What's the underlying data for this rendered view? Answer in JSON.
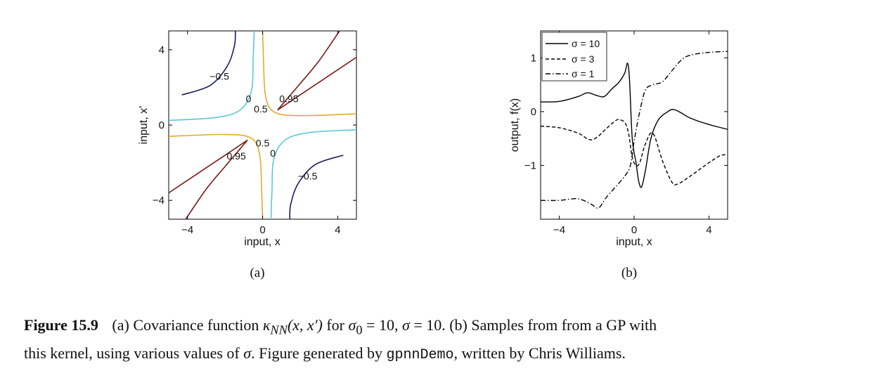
{
  "chart_data": [
    {
      "type": "contour",
      "panel_label": "(a)",
      "xlabel": "input, x",
      "ylabel": "input, x'",
      "xlim": [
        -5,
        5
      ],
      "ylim": [
        -5,
        5
      ],
      "xticks": [
        -4,
        0,
        4
      ],
      "yticks": [
        -4,
        0,
        4
      ],
      "xtick_labels": [
        "−4",
        "0",
        "4"
      ],
      "ytick_labels": [
        "−4",
        "0",
        "4"
      ],
      "levels": [
        {
          "value": -0.5,
          "label": "−0.5",
          "color": "#1a1f5e"
        },
        {
          "value": 0,
          "label": "0",
          "color": "#5cc9d2"
        },
        {
          "value": 0.5,
          "label": "0.5",
          "color": "#e5a92a"
        },
        {
          "value": 0.95,
          "label": "0.95",
          "color": "#7a1a1a"
        }
      ],
      "contours": [
        {
          "level": -0.5,
          "points": [
            [
              -4.3,
              1.6
            ],
            [
              -2.8,
              2.1
            ],
            [
              -1.9,
              3.1
            ],
            [
              -1.5,
              4.2
            ],
            [
              -1.45,
              5.0
            ]
          ]
        },
        {
          "level": -0.5,
          "points": [
            [
              4.3,
              -1.6
            ],
            [
              2.8,
              -2.1
            ],
            [
              1.9,
              -3.1
            ],
            [
              1.5,
              -4.2
            ],
            [
              1.45,
              -5.0
            ]
          ]
        },
        {
          "level": 0,
          "points": [
            [
              -5.0,
              0.25
            ],
            [
              -2.5,
              0.4
            ],
            [
              -1.2,
              0.8
            ],
            [
              -0.6,
              1.8
            ],
            [
              -0.5,
              3.5
            ],
            [
              -0.45,
              5.0
            ]
          ]
        },
        {
          "level": 0,
          "points": [
            [
              5.0,
              -0.25
            ],
            [
              2.5,
              -0.4
            ],
            [
              1.2,
              -0.8
            ],
            [
              0.6,
              -1.8
            ],
            [
              0.5,
              -3.5
            ],
            [
              0.45,
              -5.0
            ]
          ]
        },
        {
          "level": 0.5,
          "points": [
            [
              -5.0,
              -0.6
            ],
            [
              -2.0,
              -0.5
            ],
            [
              -0.6,
              -0.7
            ],
            [
              -0.15,
              -1.6
            ],
            [
              -0.05,
              -3.5
            ],
            [
              0.0,
              -5.0
            ]
          ]
        },
        {
          "level": 0.5,
          "points": [
            [
              5.0,
              0.6
            ],
            [
              2.0,
              0.5
            ],
            [
              0.6,
              0.7
            ],
            [
              0.15,
              1.6
            ],
            [
              0.05,
              3.5
            ],
            [
              0.0,
              5.0
            ]
          ]
        },
        {
          "level": 0.95,
          "points": [
            [
              0.8,
              0.8
            ],
            [
              2.0,
              1.6
            ],
            [
              3.5,
              2.6
            ],
            [
              5.0,
              3.6
            ]
          ]
        },
        {
          "level": 0.95,
          "points": [
            [
              0.8,
              0.8
            ],
            [
              2.0,
              2.2
            ],
            [
              3.0,
              3.4
            ],
            [
              4.1,
              5.0
            ]
          ]
        },
        {
          "level": 0.95,
          "points": [
            [
              -0.8,
              -0.8
            ],
            [
              -2.0,
              -1.6
            ],
            [
              -3.5,
              -2.6
            ],
            [
              -5.0,
              -3.6
            ]
          ]
        },
        {
          "level": 0.95,
          "points": [
            [
              -0.8,
              -0.8
            ],
            [
              -2.0,
              -2.2
            ],
            [
              -3.0,
              -3.4
            ],
            [
              -4.1,
              -5.0
            ]
          ]
        }
      ],
      "contour_labels": [
        {
          "text": "−0.5",
          "x": -2.3,
          "y": 2.6
        },
        {
          "text": "0",
          "x": -0.75,
          "y": 1.4
        },
        {
          "text": "0.5",
          "x": -0.1,
          "y": 0.85
        },
        {
          "text": "0.95",
          "x": 1.4,
          "y": 1.4
        },
        {
          "text": "0.5",
          "x": 0.0,
          "y": -0.95
        },
        {
          "text": "0",
          "x": 0.55,
          "y": -1.5
        },
        {
          "text": "0.95",
          "x": -1.4,
          "y": -1.65
        },
        {
          "text": "−0.5",
          "x": 2.4,
          "y": -2.7
        }
      ]
    },
    {
      "type": "line",
      "panel_label": "(b)",
      "xlabel": "input, x",
      "ylabel": "output, f(x)",
      "xlim": [
        -5,
        5
      ],
      "ylim": [
        -2.0,
        1.5
      ],
      "xticks": [
        -4,
        0,
        4
      ],
      "yticks": [
        -1,
        0,
        1
      ],
      "xtick_labels": [
        "−4",
        "0",
        "4"
      ],
      "ytick_labels": [
        "−1",
        "0",
        "1"
      ],
      "legend": {
        "position": "top-left"
      },
      "series": [
        {
          "name": "σ = 10",
          "style": "solid",
          "points": [
            [
              -5,
              0.18
            ],
            [
              -4,
              0.19
            ],
            [
              -3,
              0.28
            ],
            [
              -2.5,
              0.35
            ],
            [
              -2,
              0.3
            ],
            [
              -1.6,
              0.28
            ],
            [
              -1.2,
              0.42
            ],
            [
              -0.8,
              0.55
            ],
            [
              -0.5,
              0.72
            ],
            [
              -0.35,
              0.9
            ],
            [
              -0.25,
              0.6
            ],
            [
              -0.1,
              -0.5
            ],
            [
              0.1,
              -0.95
            ],
            [
              0.25,
              -1.3
            ],
            [
              0.4,
              -1.4
            ],
            [
              0.6,
              -1.1
            ],
            [
              0.9,
              -0.5
            ],
            [
              1.3,
              -0.15
            ],
            [
              1.8,
              0.0
            ],
            [
              2.1,
              0.04
            ],
            [
              2.5,
              -0.02
            ],
            [
              3,
              -0.12
            ],
            [
              4,
              -0.24
            ],
            [
              5,
              -0.33
            ]
          ]
        },
        {
          "name": "σ = 3",
          "style": "dashed",
          "points": [
            [
              -5,
              -0.27
            ],
            [
              -4,
              -0.3
            ],
            [
              -3,
              -0.4
            ],
            [
              -2.4,
              -0.52
            ],
            [
              -2,
              -0.48
            ],
            [
              -1.5,
              -0.32
            ],
            [
              -1,
              -0.17
            ],
            [
              -0.8,
              -0.15
            ],
            [
              -0.5,
              -0.2
            ],
            [
              -0.3,
              -0.4
            ],
            [
              -0.1,
              -0.85
            ],
            [
              0.1,
              -1.0
            ],
            [
              0.3,
              -0.95
            ],
            [
              0.6,
              -0.6
            ],
            [
              1.0,
              -0.4
            ],
            [
              1.5,
              -0.9
            ],
            [
              2.0,
              -1.3
            ],
            [
              2.3,
              -1.35
            ],
            [
              3,
              -1.2
            ],
            [
              4,
              -0.95
            ],
            [
              4.6,
              -0.82
            ],
            [
              5,
              -0.8
            ]
          ]
        },
        {
          "name": "σ = 1",
          "style": "dashdot",
          "points": [
            [
              -5,
              -1.65
            ],
            [
              -4,
              -1.65
            ],
            [
              -3,
              -1.62
            ],
            [
              -2.3,
              -1.72
            ],
            [
              -1.9,
              -1.79
            ],
            [
              -1.5,
              -1.6
            ],
            [
              -1,
              -1.4
            ],
            [
              -0.5,
              -1.2
            ],
            [
              -0.2,
              -1.0
            ],
            [
              0,
              -0.55
            ],
            [
              0.3,
              0.0
            ],
            [
              0.6,
              0.4
            ],
            [
              1,
              0.5
            ],
            [
              1.5,
              0.55
            ],
            [
              2,
              0.75
            ],
            [
              2.5,
              0.95
            ],
            [
              3,
              1.05
            ],
            [
              4,
              1.1
            ],
            [
              5,
              1.12
            ]
          ]
        }
      ]
    }
  ],
  "caption": {
    "figure_label": "Figure 15.9",
    "line1_part1": "(a) Covariance function ",
    "kappa_symbol": "κ",
    "kappa_subscript": "NN",
    "kappa_args": "(x, x′)",
    "line1_part2": " for ",
    "sigma0_symbol": "σ",
    "sigma0_subscript": "0",
    "line1_part3": " = 10, ",
    "sigma_symbol": "σ",
    "line1_part4": " = 10. (b) Samples from from a GP with",
    "line2_part1": "this kernel, using various values of ",
    "sigma_symbol2": "σ",
    "line2_part2": ". Figure generated by ",
    "code_name": "gpnnDemo",
    "line2_part3": ", written by Chris Williams."
  },
  "colors": {
    "level_neg05": "#1a1f5e",
    "level_0": "#5cc9d2",
    "level_05": "#e5a92a",
    "level_095": "#7a1a1a"
  }
}
